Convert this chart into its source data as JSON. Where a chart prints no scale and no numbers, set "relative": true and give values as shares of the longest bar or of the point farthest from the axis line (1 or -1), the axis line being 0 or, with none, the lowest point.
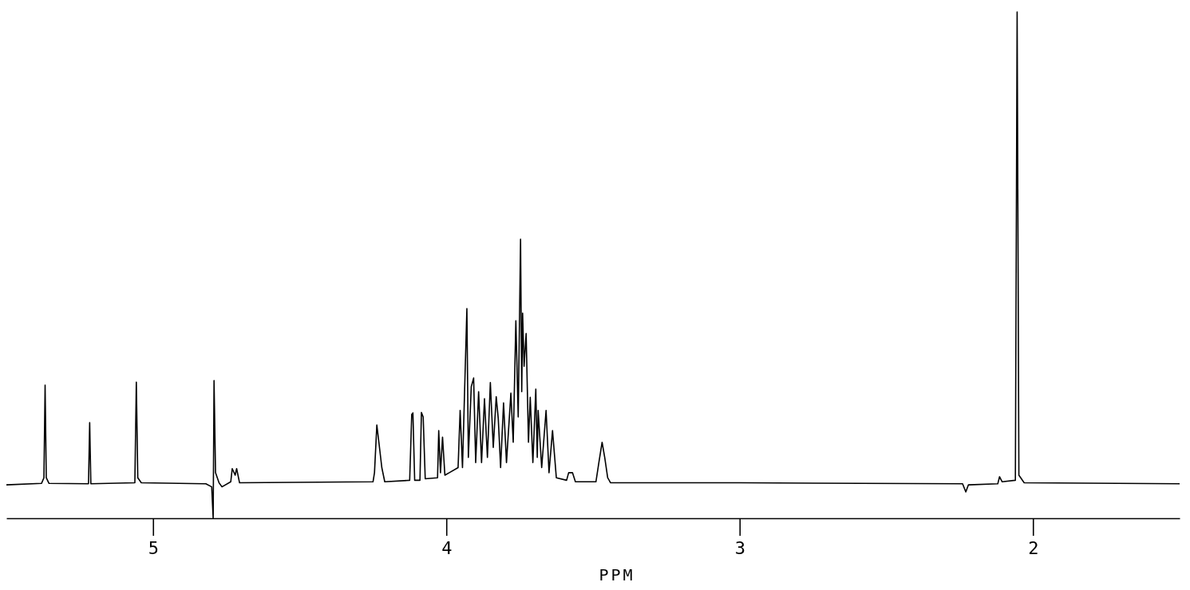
{
  "chart_data": {
    "type": "line",
    "relative": true,
    "xlabel": "PPM",
    "xlim": [
      5.5,
      1.5
    ],
    "xticks": [
      5,
      4,
      3,
      2
    ],
    "x": [
      5.5,
      5.38,
      5.372,
      5.368,
      5.364,
      5.355,
      5.22,
      5.216,
      5.212,
      5.062,
      5.057,
      5.052,
      5.04,
      4.82,
      4.8,
      4.795,
      4.792,
      4.787,
      4.775,
      4.765,
      4.735,
      4.73,
      4.72,
      4.715,
      4.705,
      4.25,
      4.245,
      4.237,
      4.23,
      4.22,
      4.21,
      4.125,
      4.118,
      4.114,
      4.108,
      4.09,
      4.085,
      4.079,
      4.072,
      4.03,
      4.026,
      4.02,
      4.013,
      4.005,
      3.99,
      3.96,
      3.953,
      3.945,
      3.93,
      3.925,
      3.915,
      3.907,
      3.9,
      3.89,
      3.88,
      3.87,
      3.86,
      3.85,
      3.84,
      3.83,
      3.823,
      3.815,
      3.805,
      3.795,
      3.78,
      3.772,
      3.763,
      3.755,
      3.747,
      3.743,
      3.74,
      3.735,
      3.728,
      3.72,
      3.714,
      3.705,
      3.695,
      3.69,
      3.687,
      3.675,
      3.66,
      3.65,
      3.638,
      3.625,
      3.59,
      3.583,
      3.57,
      3.56,
      3.49,
      3.48,
      3.469,
      3.46,
      3.45,
      3.44,
      3.0,
      2.24,
      2.229,
      2.22,
      2.12,
      2.114,
      2.105,
      2.06,
      2.054,
      2.048,
      2.03,
      1.5
    ],
    "series": [
      {
        "color": "#000000",
        "values": [
          0.066,
          0.069,
          0.08,
          0.263,
          0.08,
          0.069,
          0.068,
          0.189,
          0.068,
          0.07,
          0.269,
          0.08,
          0.07,
          0.068,
          0.062,
          0.0,
          0.272,
          0.09,
          0.07,
          0.062,
          0.072,
          0.098,
          0.085,
          0.098,
          0.07,
          0.072,
          0.09,
          0.184,
          0.15,
          0.1,
          0.072,
          0.075,
          0.205,
          0.208,
          0.075,
          0.075,
          0.209,
          0.2,
          0.078,
          0.08,
          0.173,
          0.09,
          0.16,
          0.085,
          0.09,
          0.1,
          0.213,
          0.1,
          0.414,
          0.12,
          0.26,
          0.277,
          0.11,
          0.25,
          0.11,
          0.236,
          0.12,
          0.268,
          0.14,
          0.24,
          0.197,
          0.1,
          0.228,
          0.11,
          0.247,
          0.15,
          0.39,
          0.2,
          0.551,
          0.25,
          0.405,
          0.3,
          0.365,
          0.15,
          0.239,
          0.11,
          0.255,
          0.12,
          0.213,
          0.1,
          0.213,
          0.09,
          0.173,
          0.08,
          0.075,
          0.09,
          0.09,
          0.072,
          0.072,
          0.11,
          0.15,
          0.12,
          0.08,
          0.07,
          0.07,
          0.068,
          0.052,
          0.066,
          0.068,
          0.082,
          0.072,
          0.075,
          1,
          0.085,
          0.07,
          0.068
        ]
      }
    ]
  }
}
